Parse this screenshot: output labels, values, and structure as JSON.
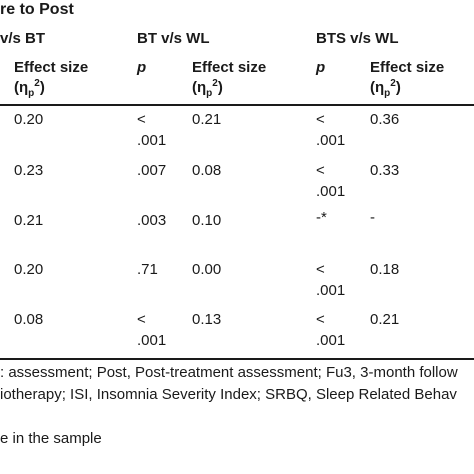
{
  "table": {
    "group_headers": [
      "re to Post",
      "v/s BT",
      "BT v/s WL",
      "BTS v/s WL"
    ],
    "col_headers": {
      "effect_size": "Effect size",
      "p": "p",
      "eta_open": "(η",
      "eta_sub": "p",
      "eta_sup": "2",
      "eta_close": ")"
    },
    "rows": [
      {
        "es1": "0.20",
        "p2a": "<",
        "p2b": ".001",
        "es2": "0.21",
        "p3a": "<",
        "p3b": ".001",
        "es3": "0.36"
      },
      {
        "es1": "0.23",
        "p2a": ".007",
        "p2b": "",
        "es2": "0.08",
        "p3a": "<",
        "p3b": ".001",
        "es3": "0.33"
      },
      {
        "es1": "0.21",
        "p2a": ".003",
        "p2b": "",
        "es2": "0.10",
        "p3a": "-*",
        "p3b": "",
        "es3": "-"
      },
      {
        "es1": "0.20",
        "p2a": ".71",
        "p2b": "",
        "es2": "0.00",
        "p3a": "<",
        "p3b": ".001",
        "es3": "0.18"
      },
      {
        "es1": "0.08",
        "p2a": "<",
        "p2b": ".001",
        "es2": "0.13",
        "p3a": "<",
        "p3b": ".001",
        "es3": "0.21"
      }
    ],
    "footnotes": [
      ": assessment; Post, Post-treatment assessment; Fu3, 3-month follow",
      "iotherapy; ISI, Insomnia Severity Index; SRBQ, Sleep Related Behav",
      "e in the sample"
    ]
  }
}
